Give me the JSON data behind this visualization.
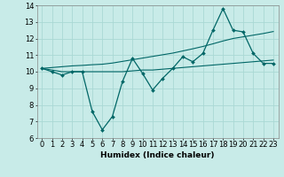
{
  "x_main": [
    0,
    1,
    2,
    3,
    4,
    5,
    6,
    7,
    8,
    9,
    10,
    11,
    12,
    13,
    14,
    15,
    16,
    17,
    18,
    19,
    20,
    21,
    22,
    23
  ],
  "y_main": [
    10.2,
    10.0,
    9.8,
    10.0,
    10.0,
    7.6,
    6.5,
    7.3,
    9.4,
    10.8,
    9.9,
    8.9,
    9.6,
    10.2,
    10.9,
    10.6,
    11.1,
    12.5,
    13.8,
    12.5,
    12.4,
    11.1,
    10.5,
    10.5
  ],
  "y_trend1": [
    10.2,
    10.1,
    10.0,
    10.0,
    10.0,
    10.0,
    10.0,
    10.0,
    10.0,
    10.05,
    10.1,
    10.1,
    10.15,
    10.2,
    10.25,
    10.3,
    10.35,
    10.4,
    10.45,
    10.5,
    10.55,
    10.6,
    10.65,
    10.7
  ],
  "y_trend2": [
    10.2,
    10.25,
    10.3,
    10.35,
    10.38,
    10.42,
    10.45,
    10.52,
    10.62,
    10.72,
    10.82,
    10.92,
    11.02,
    11.12,
    11.25,
    11.38,
    11.52,
    11.68,
    11.85,
    12.0,
    12.1,
    12.2,
    12.3,
    12.42
  ],
  "background_color": "#c8ebe8",
  "grid_color": "#aad8d4",
  "line_color": "#006666",
  "xlim": [
    -0.5,
    23.5
  ],
  "ylim": [
    6,
    14
  ],
  "xlabel": "Humidex (Indice chaleur)",
  "ylabel_ticks": [
    6,
    7,
    8,
    9,
    10,
    11,
    12,
    13,
    14
  ],
  "xlabel_fontsize": 6.5,
  "tick_fontsize": 6
}
